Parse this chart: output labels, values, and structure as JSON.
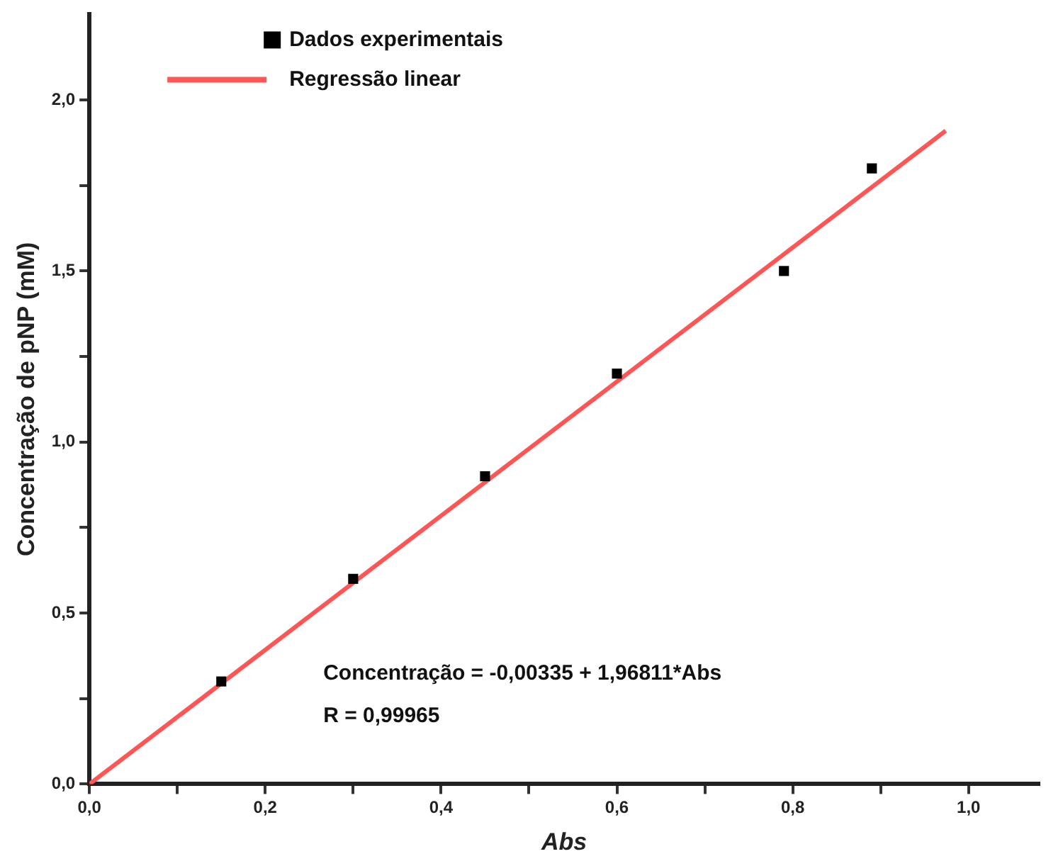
{
  "chart_data": {
    "type": "scatter",
    "xlabel": "Abs",
    "ylabel": "Concentração de pNP (mM)",
    "series": [
      {
        "name": "Dados experimentais",
        "color": "#000000",
        "marker": "square",
        "x": [
          0.15,
          0.3,
          0.45,
          0.6,
          0.79,
          0.89
        ],
        "values": [
          0.3,
          0.6,
          0.9,
          1.2,
          1.5,
          1.8
        ]
      },
      {
        "name": "Regressão linear",
        "type": "line",
        "color": "#ff5555",
        "marker": "none",
        "line_style": "solid",
        "x": [
          0,
          0.974
        ],
        "values": [
          0,
          1.91
        ]
      }
    ],
    "xlim": [
      0,
      1.08
    ],
    "ylim": [
      0,
      2.25
    ],
    "xticks": [
      {
        "value": 0,
        "label": "0,0"
      },
      {
        "value": 0.1,
        "label": null
      },
      {
        "value": 0.2,
        "label": "0,2"
      },
      {
        "value": 0.3,
        "label": null
      },
      {
        "value": 0.4,
        "label": "0,4"
      },
      {
        "value": 0.5,
        "label": null
      },
      {
        "value": 0.6,
        "label": "0,6"
      },
      {
        "value": 0.7,
        "label": null
      },
      {
        "value": 0.8,
        "label": "0,8"
      },
      {
        "value": 0.9,
        "label": null
      },
      {
        "value": 1,
        "label": "1,0"
      }
    ],
    "yticks": [
      {
        "value": 0,
        "label": "0,0"
      },
      {
        "value": 0.25,
        "label": null
      },
      {
        "value": 0.5,
        "label": "0,5"
      },
      {
        "value": 0.75,
        "label": null
      },
      {
        "value": 1,
        "label": "1,0"
      },
      {
        "value": 1.25,
        "label": null
      },
      {
        "value": 1.5,
        "label": "1,5"
      },
      {
        "value": 1.75,
        "label": null
      },
      {
        "value": 2,
        "label": "2,0"
      }
    ],
    "grid": false,
    "legend": "top left",
    "annotations": [
      "Concentração = -0,00335 + 1,96811*Abs",
      "R = 0,99965"
    ]
  }
}
